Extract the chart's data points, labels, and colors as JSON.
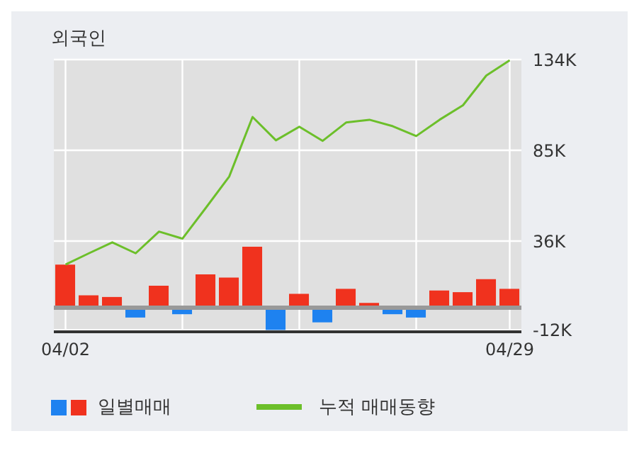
{
  "chart_data": {
    "type": "bar",
    "title": "외국인",
    "categories": [
      "04/02",
      null,
      null,
      null,
      null,
      null,
      null,
      null,
      null,
      null,
      null,
      null,
      null,
      null,
      null,
      null,
      null,
      null,
      null,
      "04/29"
    ],
    "series": [
      {
        "name": "일별매매",
        "values": [
          23.3,
          6.7,
          5.8,
          -5.3,
          11.9,
          -3.5,
          18,
          16.3,
          32.9,
          -12,
          7.5,
          -7.9,
          10.2,
          2.6,
          -3.5,
          -5.3,
          9.3,
          8.4,
          15.4,
          10.2
        ],
        "colors": [
          "#f0321e",
          "#f0321e",
          "#f0321e",
          "#1e82f0",
          "#f0321e",
          "#1e82f0",
          "#f0321e",
          "#f0321e",
          "#f0321e",
          "#1e82f0",
          "#f0321e",
          "#1e82f0",
          "#f0321e",
          "#f0321e",
          "#1e82f0",
          "#1e82f0",
          "#f0321e",
          "#f0321e",
          "#f0321e",
          "#f0321e"
        ]
      },
      {
        "name": "누적 매매동향",
        "type": "line",
        "color": "#6cbf2a",
        "values": [
          23.3,
          29.4,
          35.3,
          29.4,
          41.1,
          37.3,
          53.9,
          70.8,
          103,
          90.4,
          97.7,
          90.1,
          100,
          101.5,
          98,
          92.7,
          101.5,
          109.3,
          125.4,
          133.6
        ]
      }
    ],
    "ylim": [
      -13,
      134
    ],
    "yticks": [
      {
        "value": 134,
        "label": "134K"
      },
      {
        "value": 85,
        "label": "85K"
      },
      {
        "value": 36,
        "label": "36K"
      },
      {
        "value": -12,
        "label": "-12K"
      }
    ],
    "ref_lines": [
      {
        "axis": "y",
        "value": 0,
        "color": "#999999"
      }
    ],
    "grid": true,
    "legend": "bottom"
  }
}
